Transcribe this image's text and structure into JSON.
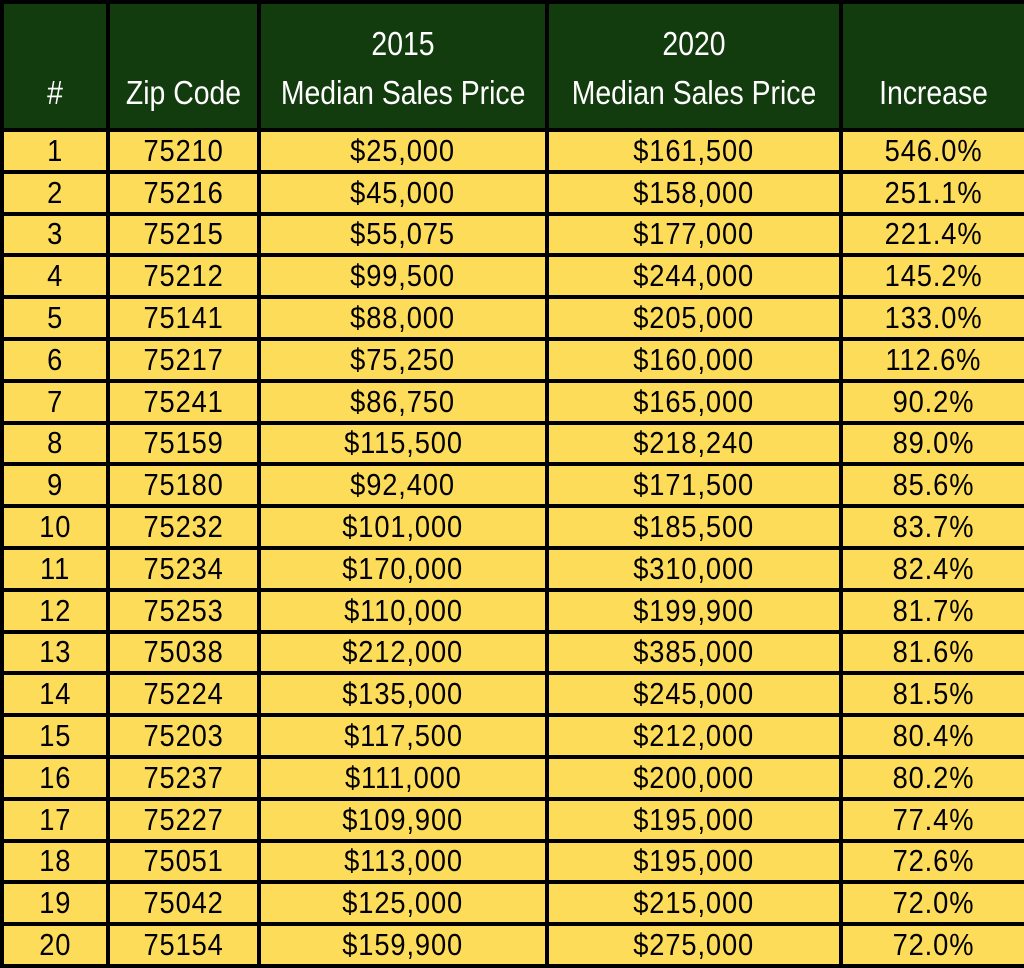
{
  "chart_data": {
    "type": "table",
    "columns": [
      {
        "key": "rank",
        "lines": [
          "#"
        ]
      },
      {
        "key": "zip",
        "lines": [
          "Zip Code"
        ]
      },
      {
        "key": "price_2015",
        "lines": [
          "2015",
          "Median Sales Price"
        ]
      },
      {
        "key": "price_2020",
        "lines": [
          "2020",
          "Median Sales Price"
        ]
      },
      {
        "key": "increase",
        "lines": [
          "Increase"
        ]
      }
    ],
    "rows": [
      {
        "rank": "1",
        "zip": "75210",
        "price_2015": "$25,000",
        "price_2020": "$161,500",
        "increase": "546.0%"
      },
      {
        "rank": "2",
        "zip": "75216",
        "price_2015": "$45,000",
        "price_2020": "$158,000",
        "increase": "251.1%"
      },
      {
        "rank": "3",
        "zip": "75215",
        "price_2015": "$55,075",
        "price_2020": "$177,000",
        "increase": "221.4%"
      },
      {
        "rank": "4",
        "zip": "75212",
        "price_2015": "$99,500",
        "price_2020": "$244,000",
        "increase": "145.2%"
      },
      {
        "rank": "5",
        "zip": "75141",
        "price_2015": "$88,000",
        "price_2020": "$205,000",
        "increase": "133.0%"
      },
      {
        "rank": "6",
        "zip": "75217",
        "price_2015": "$75,250",
        "price_2020": "$160,000",
        "increase": "112.6%"
      },
      {
        "rank": "7",
        "zip": "75241",
        "price_2015": "$86,750",
        "price_2020": "$165,000",
        "increase": "90.2%"
      },
      {
        "rank": "8",
        "zip": "75159",
        "price_2015": "$115,500",
        "price_2020": "$218,240",
        "increase": "89.0%"
      },
      {
        "rank": "9",
        "zip": "75180",
        "price_2015": "$92,400",
        "price_2020": "$171,500",
        "increase": "85.6%"
      },
      {
        "rank": "10",
        "zip": "75232",
        "price_2015": "$101,000",
        "price_2020": "$185,500",
        "increase": "83.7%"
      },
      {
        "rank": "11",
        "zip": "75234",
        "price_2015": "$170,000",
        "price_2020": "$310,000",
        "increase": "82.4%"
      },
      {
        "rank": "12",
        "zip": "75253",
        "price_2015": "$110,000",
        "price_2020": "$199,900",
        "increase": "81.7%"
      },
      {
        "rank": "13",
        "zip": "75038",
        "price_2015": "$212,000",
        "price_2020": "$385,000",
        "increase": "81.6%"
      },
      {
        "rank": "14",
        "zip": "75224",
        "price_2015": "$135,000",
        "price_2020": "$245,000",
        "increase": "81.5%"
      },
      {
        "rank": "15",
        "zip": "75203",
        "price_2015": "$117,500",
        "price_2020": "$212,000",
        "increase": "80.4%"
      },
      {
        "rank": "16",
        "zip": "75237",
        "price_2015": "$111,000",
        "price_2020": "$200,000",
        "increase": "80.2%"
      },
      {
        "rank": "17",
        "zip": "75227",
        "price_2015": "$109,900",
        "price_2020": "$195,000",
        "increase": "77.4%"
      },
      {
        "rank": "18",
        "zip": "75051",
        "price_2015": "$113,000",
        "price_2020": "$195,000",
        "increase": "72.6%"
      },
      {
        "rank": "19",
        "zip": "75042",
        "price_2015": "$125,000",
        "price_2020": "$215,000",
        "increase": "72.0%"
      },
      {
        "rank": "20",
        "zip": "75154",
        "price_2015": "$159,900",
        "price_2020": "$275,000",
        "increase": "72.0%"
      }
    ]
  },
  "colors": {
    "header_background": "#123b0e",
    "header_text": "#ffffff",
    "row_background": "#fddc5a",
    "row_text": "#000000",
    "grid_lines": "#000000"
  }
}
